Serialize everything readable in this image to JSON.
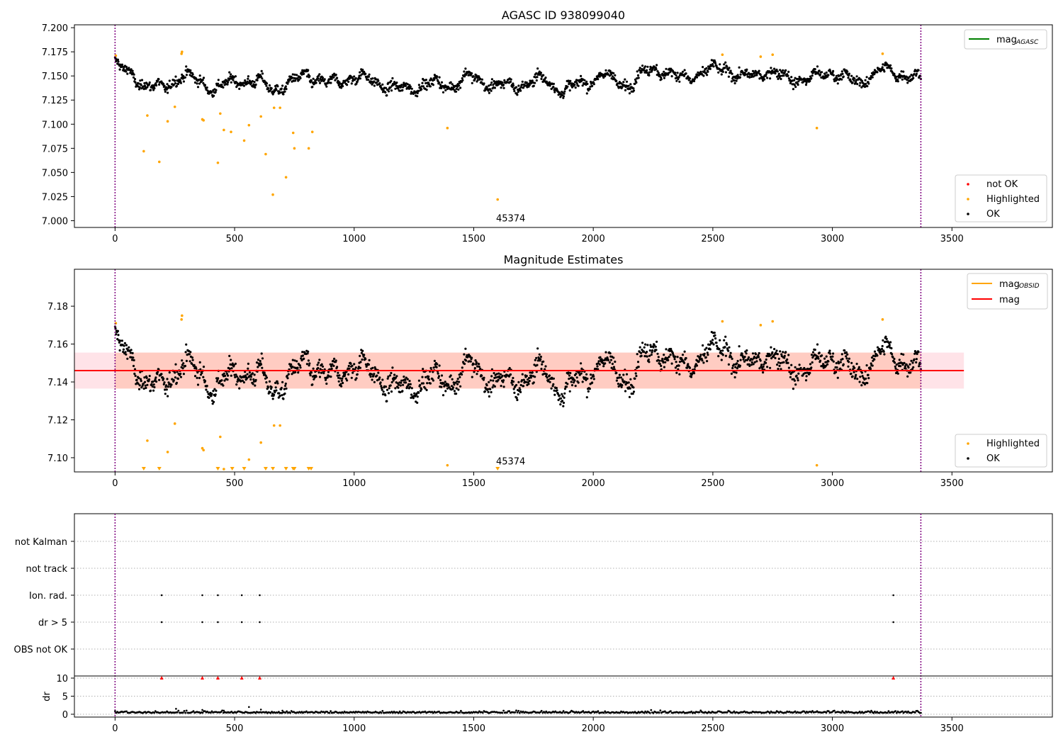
{
  "chart_data": [
    {
      "type": "scatter",
      "title": "AGASC ID 938099040",
      "xlabel": "",
      "ylabel": "",
      "xlim": [
        -170,
        3920
      ],
      "ylim": [
        6.993,
        7.203
      ],
      "xticks": [
        0,
        500,
        1000,
        1500,
        2000,
        2500,
        3000,
        3500
      ],
      "yticks": [
        7.0,
        7.025,
        7.05,
        7.075,
        7.1,
        7.125,
        7.15,
        7.175,
        7.2
      ],
      "ytick_labels": [
        "7.000",
        "7.025",
        "7.050",
        "7.075",
        "7.100",
        "7.125",
        "7.150",
        "7.175",
        "7.200"
      ],
      "vlines": [
        0,
        3370
      ],
      "annotation": {
        "text": "45374",
        "x": 1620,
        "y": 7.0
      },
      "legend_top": [
        {
          "label": "mag",
          "sub": "AGASC",
          "color": "#008000"
        }
      ],
      "legend_bottom": [
        {
          "label": "not OK",
          "color": "#ff0000"
        },
        {
          "label": "Highlighted",
          "color": "#ffa500"
        },
        {
          "label": "OK",
          "color": "#000000"
        }
      ],
      "series": [
        {
          "name": "OK",
          "color": "#000000",
          "trend": [
            [
              0,
              7.163
            ],
            [
              40,
              7.155
            ],
            [
              120,
              7.142
            ],
            [
              200,
              7.136
            ],
            [
              280,
              7.152
            ],
            [
              330,
              7.146
            ],
            [
              420,
              7.137
            ],
            [
              520,
              7.146
            ],
            [
              600,
              7.144
            ],
            [
              660,
              7.136
            ],
            [
              760,
              7.145
            ],
            [
              800,
              7.152
            ],
            [
              900,
              7.141
            ],
            [
              1000,
              7.15
            ],
            [
              1100,
              7.143
            ],
            [
              1200,
              7.135
            ],
            [
              1300,
              7.142
            ],
            [
              1400,
              7.14
            ],
            [
              1480,
              7.149
            ],
            [
              1600,
              7.139
            ],
            [
              1700,
              7.141
            ],
            [
              1800,
              7.147
            ],
            [
              1880,
              7.133
            ],
            [
              1950,
              7.143
            ],
            [
              2050,
              7.15
            ],
            [
              2150,
              7.14
            ],
            [
              2250,
              7.16
            ],
            [
              2350,
              7.148
            ],
            [
              2450,
              7.152
            ],
            [
              2550,
              7.16
            ],
            [
              2620,
              7.147
            ],
            [
              2720,
              7.155
            ],
            [
              2800,
              7.149
            ],
            [
              2900,
              7.146
            ],
            [
              3000,
              7.155
            ],
            [
              3100,
              7.142
            ],
            [
              3200,
              7.156
            ],
            [
              3300,
              7.152
            ],
            [
              3370,
              7.146
            ]
          ],
          "count": 1700,
          "noise": 0.0045
        },
        {
          "name": "Highlighted",
          "color": "#ffa500",
          "x": [
            3,
            120,
            135,
            185,
            220,
            250,
            278,
            280,
            365,
            370,
            430,
            440,
            455,
            485,
            540,
            560,
            610,
            630,
            660,
            665,
            690,
            715,
            745,
            750,
            810,
            825,
            1390,
            1600,
            2540,
            2700,
            2750,
            2935,
            3210
          ],
          "y": [
            7.171,
            7.072,
            7.109,
            7.061,
            7.103,
            7.118,
            7.173,
            7.175,
            7.105,
            7.104,
            7.06,
            7.111,
            7.094,
            7.092,
            7.083,
            7.099,
            7.108,
            7.069,
            7.027,
            7.117,
            7.117,
            7.045,
            7.091,
            7.075,
            7.075,
            7.092,
            7.096,
            7.022,
            7.172,
            7.17,
            7.172,
            7.096,
            7.173
          ]
        }
      ]
    },
    {
      "type": "scatter",
      "title": "Magnitude Estimates",
      "xlabel": "",
      "ylabel": "",
      "xlim": [
        -170,
        3920
      ],
      "ylim": [
        7.0925,
        7.1995
      ],
      "xticks": [
        0,
        500,
        1000,
        1500,
        2000,
        2500,
        3000,
        3500
      ],
      "yticks": [
        7.1,
        7.12,
        7.14,
        7.16,
        7.18
      ],
      "ytick_labels": [
        "7.10",
        "7.12",
        "7.14",
        "7.16",
        "7.18"
      ],
      "vlines": [
        0,
        3370
      ],
      "mag_line": 7.146,
      "mag_band": [
        7.1365,
        7.1555
      ],
      "band_xrange": [
        -170,
        3550
      ],
      "annotation": {
        "text": "45374",
        "x": 1620,
        "y": 7.095
      },
      "legend_top": [
        {
          "label": "mag",
          "sub": "OBSID",
          "color": "#ffa500"
        },
        {
          "label": "mag",
          "sub": "",
          "color": "#ff0000"
        }
      ],
      "legend_bottom": [
        {
          "label": "Highlighted",
          "color": "#ffa500"
        },
        {
          "label": "OK",
          "color": "#000000"
        }
      ],
      "out_of_range_x": [
        120,
        185,
        430,
        490,
        540,
        630,
        660,
        715,
        745,
        750,
        810,
        820,
        1600
      ]
    },
    {
      "type": "scatter",
      "title": "",
      "xlim": [
        -170,
        3920
      ],
      "xticks": [
        0,
        500,
        1000,
        1500,
        2000,
        2500,
        3000,
        3500
      ],
      "flag_labels": [
        "not Kalman",
        "not track",
        "Ion. rad.",
        "dr > 5",
        "OBS not OK"
      ],
      "flag_points": {
        "Ion. rad.": [
          195,
          365,
          430,
          530,
          605,
          3255
        ],
        "dr > 5": [
          195,
          365,
          430,
          530,
          605,
          3255
        ]
      },
      "dr_ylabel": "dr",
      "dr_yticks": [
        0,
        5,
        10
      ],
      "dr_clip_x": [
        195,
        365,
        430,
        530,
        605,
        3255
      ],
      "dr_spikes": [
        [
          255,
          1.5
        ],
        [
          365,
          1.2
        ],
        [
          455,
          1.0
        ],
        [
          560,
          2.0
        ],
        [
          610,
          1.3
        ],
        [
          700,
          1.0
        ]
      ]
    }
  ]
}
